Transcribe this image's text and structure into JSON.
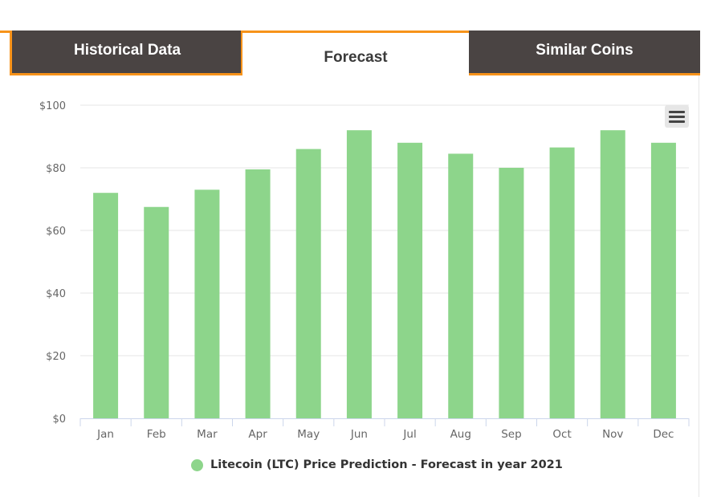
{
  "tabs": [
    {
      "label": "Historical Data",
      "active": false
    },
    {
      "label": "Forecast",
      "active": true
    },
    {
      "label": "Similar Coins",
      "active": false
    }
  ],
  "menu": {
    "icon": "hamburger-menu-icon"
  },
  "colors": {
    "bar": "#8dd58b",
    "accent": "#f7931a",
    "tab_dark": "#4a4443"
  },
  "chart_data": {
    "type": "bar",
    "categories": [
      "Jan",
      "Feb",
      "Mar",
      "Apr",
      "May",
      "Jun",
      "Jul",
      "Aug",
      "Sep",
      "Oct",
      "Nov",
      "Dec"
    ],
    "series": [
      {
        "name": "Litecoin (LTC) Price Prediction - Forecast in year 2021",
        "values": [
          72,
          67.5,
          73,
          79.5,
          86,
          92,
          88,
          84.5,
          80,
          86.5,
          92,
          88
        ]
      }
    ],
    "ylim": [
      0,
      100
    ],
    "yticks": [
      0,
      20,
      40,
      60,
      80,
      100
    ],
    "ytick_labels": [
      "$0",
      "$20",
      "$40",
      "$60",
      "$80",
      "$100"
    ],
    "grid": true,
    "legend_position": "bottom-center"
  }
}
